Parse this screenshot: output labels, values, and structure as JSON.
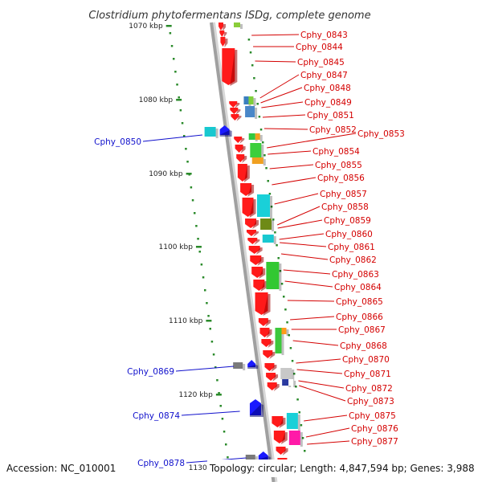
{
  "title": "Clostridium phytofermentans ISDg, complete genome",
  "accession": "Accession: NC_010001",
  "summary": "Topology: circular; Length: 4,847,594 bp; Genes: 3,988",
  "colors": {
    "forward": "#ff1a1a",
    "reverse": "#1a1aff",
    "backbone": "#a0a0a0",
    "tick": "#2a8a2a",
    "label_right": "#d40000",
    "label_left": "#1010cc"
  },
  "kbp_ticks": [
    "1070 kbp",
    "1080 kbp",
    "1090 kbp",
    "1100 kbp",
    "1110 kbp",
    "1120 kbp",
    "1130 kbp"
  ],
  "genes_right": [
    "Cphy_0843",
    "Cphy_0844",
    "Cphy_0845",
    "Cphy_0847",
    "Cphy_0848",
    "Cphy_0849",
    "Cphy_0851",
    "Cphy_0852",
    "Cphy_0853",
    "Cphy_0854",
    "Cphy_0855",
    "Cphy_0856",
    "Cphy_0857",
    "Cphy_0858",
    "Cphy_0859",
    "Cphy_0860",
    "Cphy_0861",
    "Cphy_0862",
    "Cphy_0863",
    "Cphy_0864",
    "Cphy_0865",
    "Cphy_0866",
    "Cphy_0867",
    "Cphy_0868",
    "Cphy_0870",
    "Cphy_0871",
    "Cphy_0872",
    "Cphy_0873",
    "Cphy_0875",
    "Cphy_0876",
    "Cphy_0877"
  ],
  "genes_left": [
    "Cphy_0850",
    "Cphy_0869",
    "Cphy_0874",
    "Cphy_0878"
  ]
}
